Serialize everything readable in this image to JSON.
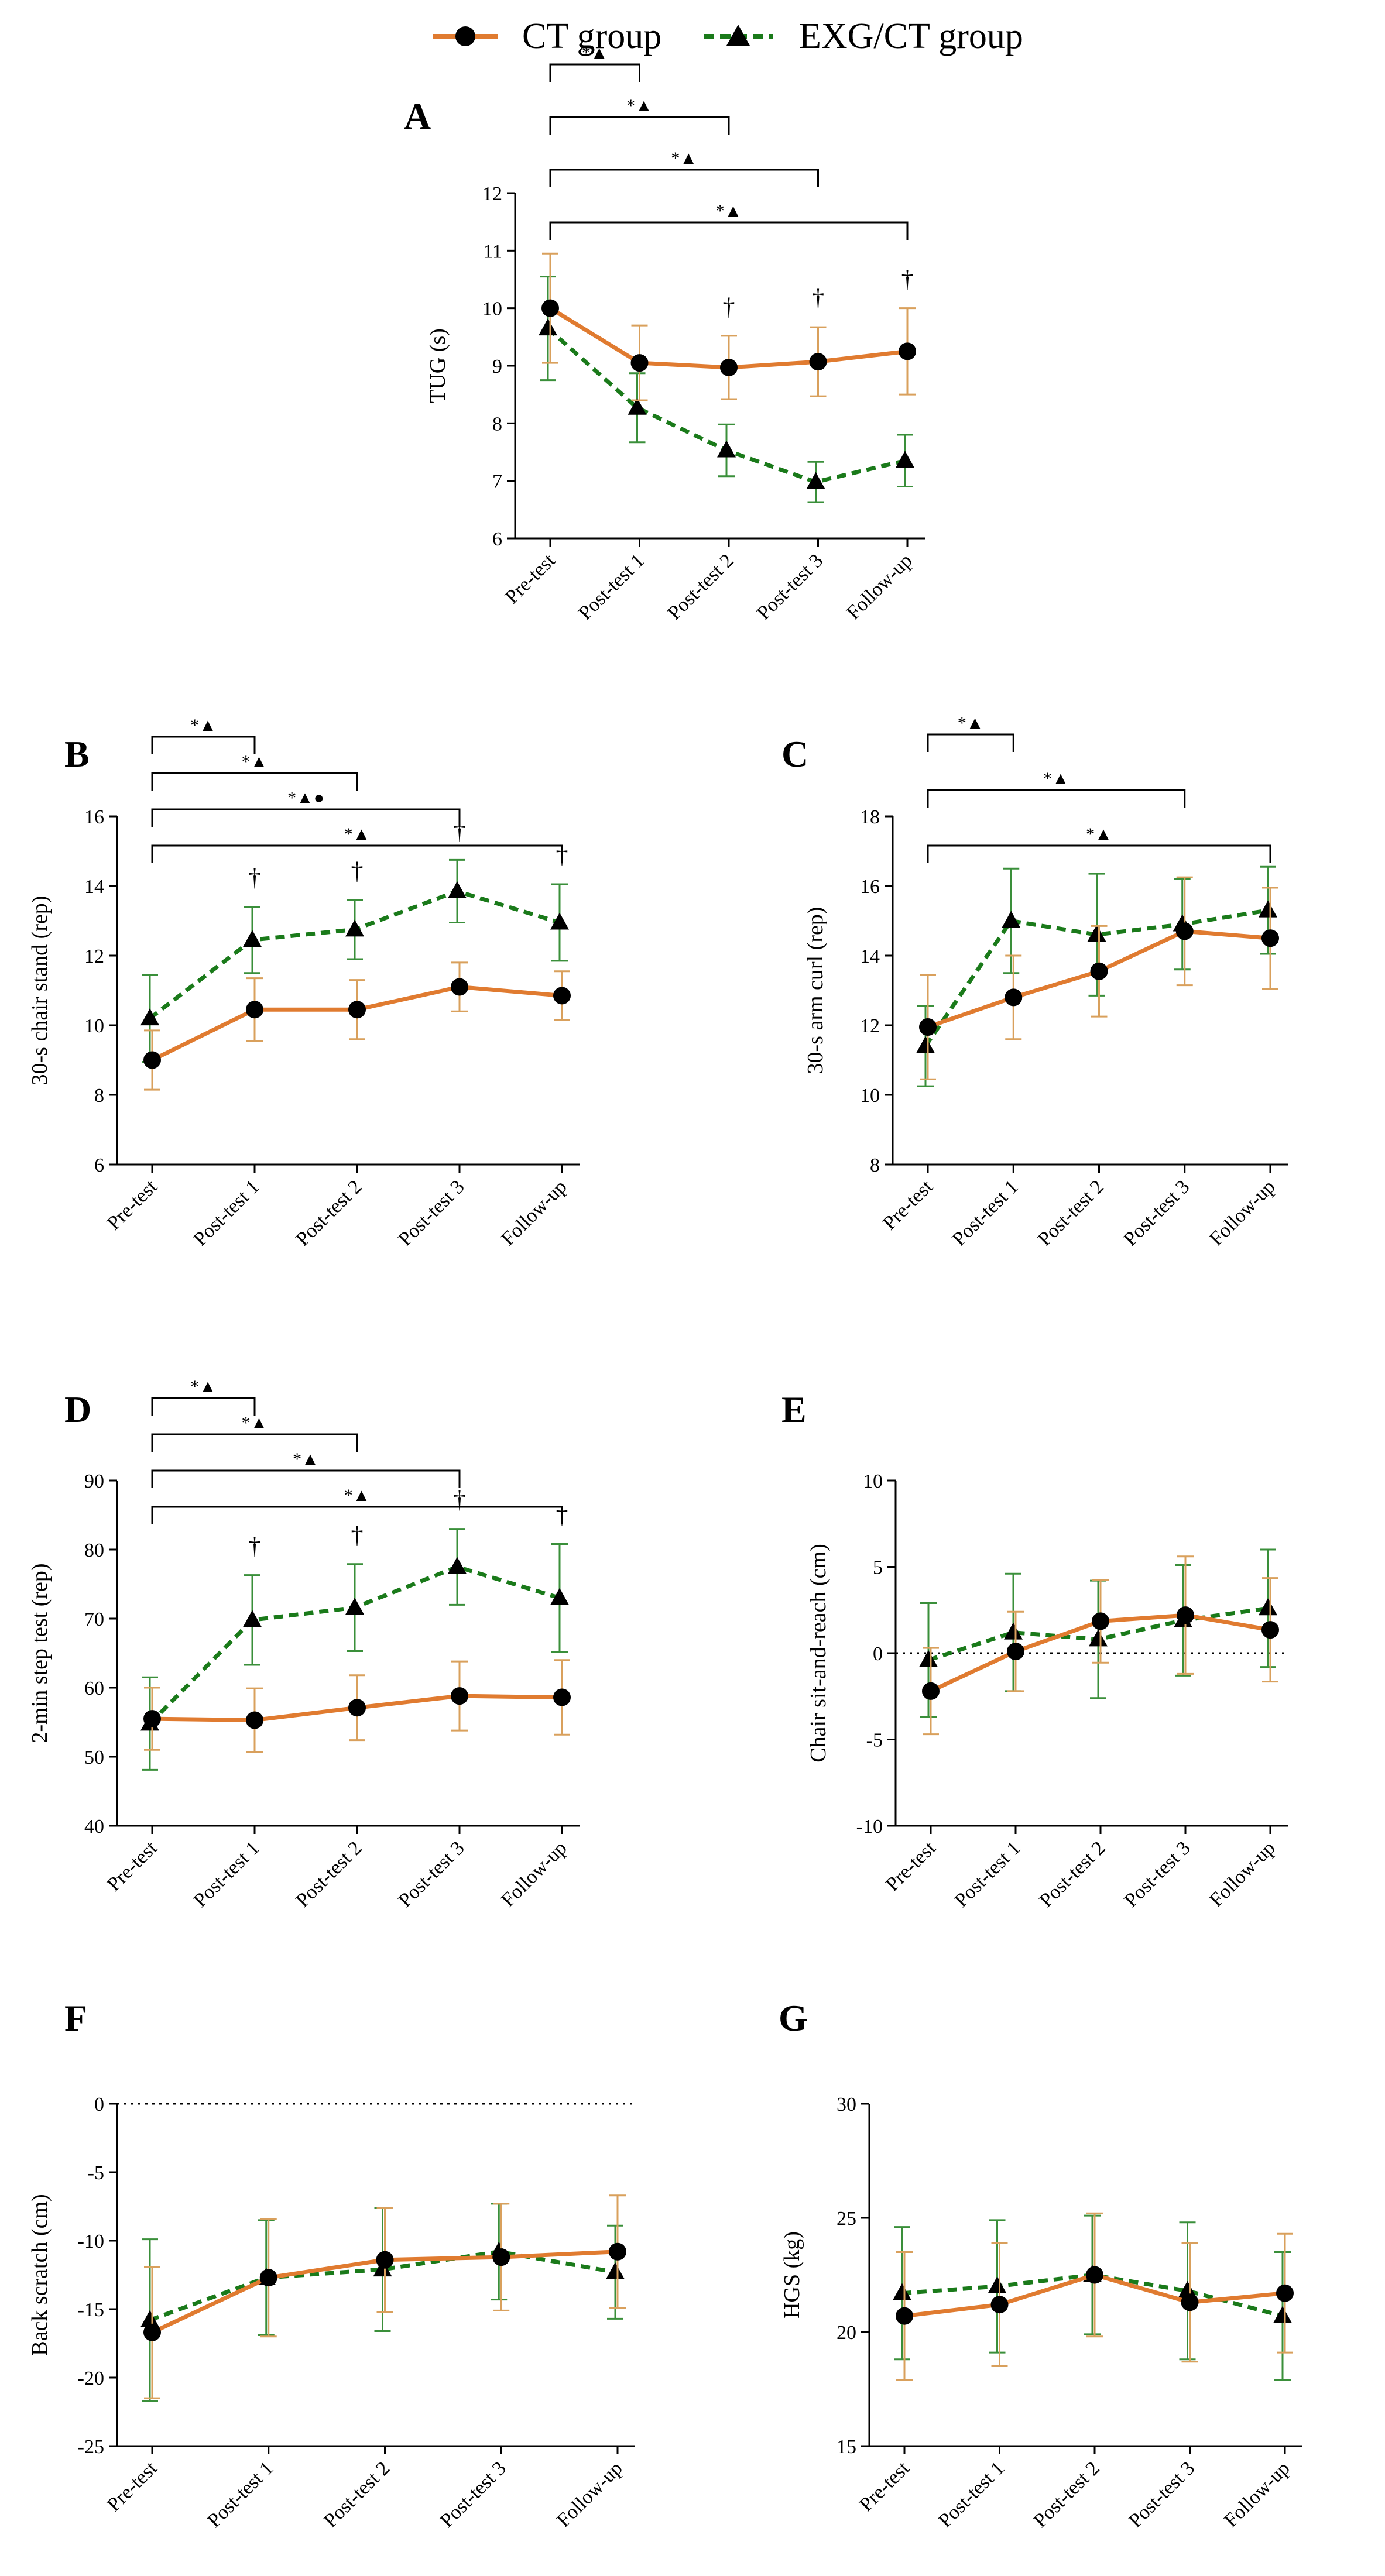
{
  "legend": {
    "ct_label": "CT group",
    "exg_label": "EXG/CT group"
  },
  "colors": {
    "ct": "#E07B30",
    "ct_err": "#D9A05C",
    "exg": "#1A7A1A",
    "exg_err": "#3A8F3A",
    "axis": "#000000"
  },
  "chart_data": [
    {
      "id": "A",
      "type": "line",
      "panel_letter": "A",
      "ylabel": "TUG (s)",
      "categories": [
        "Pre-test",
        "Post-test 1",
        "Post-test 2",
        "Post-test 3",
        "Follow-up"
      ],
      "ylim": [
        6,
        12
      ],
      "yticks": [
        6,
        7,
        8,
        9,
        10,
        11,
        12
      ],
      "series": [
        {
          "name": "CT group",
          "values": [
            10.0,
            9.05,
            8.97,
            9.07,
            9.25
          ],
          "err": [
            0.95,
            0.65,
            0.55,
            0.6,
            0.75
          ]
        },
        {
          "name": "EXG/CT group",
          "values": [
            9.65,
            8.27,
            7.53,
            6.98,
            7.35
          ],
          "err": [
            0.9,
            0.6,
            0.45,
            0.35,
            0.45
          ]
        }
      ],
      "brackets": [
        {
          "to": 1,
          "label": "*▲"
        },
        {
          "to": 2,
          "label": "*▲"
        },
        {
          "to": 3,
          "label": "*▲"
        },
        {
          "to": 4,
          "label": "*▲"
        }
      ],
      "daggers": [
        2,
        3,
        4
      ],
      "dagger_symbol": "†"
    },
    {
      "id": "B",
      "type": "line",
      "panel_letter": "B",
      "ylabel": "30-s chair stand (rep)",
      "categories": [
        "Pre-test",
        "Post-test 1",
        "Post-test 2",
        "Post-test 3",
        "Follow-up"
      ],
      "ylim": [
        6,
        16
      ],
      "yticks": [
        6,
        8,
        10,
        12,
        14,
        16
      ],
      "series": [
        {
          "name": "CT group",
          "values": [
            9.0,
            10.45,
            10.45,
            11.1,
            10.85
          ],
          "err": [
            0.85,
            0.9,
            0.85,
            0.7,
            0.7
          ]
        },
        {
          "name": "EXG/CT group",
          "values": [
            10.2,
            12.45,
            12.75,
            13.85,
            12.95
          ],
          "err": [
            1.25,
            0.95,
            0.85,
            0.9,
            1.1
          ]
        }
      ],
      "brackets": [
        {
          "to": 1,
          "label": "*▲"
        },
        {
          "to": 2,
          "label": "*▲"
        },
        {
          "to": 3,
          "label": "*▲●"
        },
        {
          "to": 4,
          "label": "*▲"
        }
      ],
      "daggers": [
        1,
        2,
        3,
        4
      ],
      "dagger_symbol": "†"
    },
    {
      "id": "C",
      "type": "line",
      "panel_letter": "C",
      "ylabel": "30-s arm curl (rep)",
      "categories": [
        "Pre-test",
        "Post-test 1",
        "Post-test 2",
        "Post-test 3",
        "Follow-up"
      ],
      "ylim": [
        8,
        18
      ],
      "yticks": [
        8,
        10,
        12,
        14,
        16,
        18
      ],
      "series": [
        {
          "name": "CT group",
          "values": [
            11.95,
            12.8,
            13.55,
            14.7,
            14.5
          ],
          "err": [
            1.5,
            1.2,
            1.3,
            1.55,
            1.45
          ]
        },
        {
          "name": "EXG/CT group",
          "values": [
            11.4,
            15.0,
            14.6,
            14.9,
            15.3
          ],
          "err": [
            1.15,
            1.5,
            1.75,
            1.3,
            1.25
          ]
        }
      ],
      "brackets": [
        {
          "to": 1,
          "label": "*▲"
        },
        {
          "to": 3,
          "label": "*▲"
        },
        {
          "to": 4,
          "label": "*▲"
        }
      ],
      "daggers": [],
      "dagger_symbol": "†"
    },
    {
      "id": "D",
      "type": "line",
      "panel_letter": "D",
      "ylabel": "2-min step test (rep)",
      "categories": [
        "Pre-test",
        "Post-test 1",
        "Post-test 2",
        "Post-test 3",
        "Follow-up"
      ],
      "ylim": [
        40,
        90
      ],
      "yticks": [
        40,
        50,
        60,
        70,
        80,
        90
      ],
      "series": [
        {
          "name": "CT group",
          "values": [
            55.5,
            55.3,
            57.1,
            58.8,
            58.6
          ],
          "err": [
            4.5,
            4.6,
            4.7,
            5.0,
            5.4
          ]
        },
        {
          "name": "EXG/CT group",
          "values": [
            54.8,
            69.8,
            71.6,
            77.5,
            73.0
          ],
          "err": [
            6.7,
            6.5,
            6.3,
            5.5,
            7.8
          ]
        }
      ],
      "brackets": [
        {
          "to": 1,
          "label": "*▲"
        },
        {
          "to": 2,
          "label": "*▲"
        },
        {
          "to": 3,
          "label": "*▲"
        },
        {
          "to": 4,
          "label": "*▲"
        }
      ],
      "daggers": [
        1,
        2,
        3,
        4
      ],
      "dagger_symbol": "†"
    },
    {
      "id": "E",
      "type": "line",
      "panel_letter": "E",
      "ylabel": "Chair sit-and-reach (cm)",
      "categories": [
        "Pre-test",
        "Post-test 1",
        "Post-test 2",
        "Post-test 3",
        "Follow-up"
      ],
      "ylim": [
        -10,
        10
      ],
      "yticks": [
        -10,
        -5,
        0,
        5,
        10
      ],
      "zero_line": true,
      "series": [
        {
          "name": "CT group",
          "values": [
            -2.2,
            0.1,
            1.85,
            2.2,
            1.35
          ],
          "err": [
            2.5,
            2.3,
            2.4,
            3.4,
            3.0
          ]
        },
        {
          "name": "EXG/CT group",
          "values": [
            -0.4,
            1.2,
            0.8,
            1.9,
            2.6
          ],
          "err": [
            3.3,
            3.4,
            3.4,
            3.2,
            3.4
          ]
        }
      ],
      "brackets": [],
      "daggers": [],
      "dagger_symbol": "†"
    },
    {
      "id": "F",
      "type": "line",
      "panel_letter": "F",
      "ylabel": "Back scratch (cm)",
      "categories": [
        "Pre-test",
        "Post-test 1",
        "Post-test 2",
        "Post-test 3",
        "Follow-up"
      ],
      "ylim": [
        -25,
        0
      ],
      "yticks": [
        -25,
        -20,
        -15,
        -10,
        -5,
        0
      ],
      "zero_line": true,
      "series": [
        {
          "name": "CT group",
          "values": [
            -16.7,
            -12.7,
            -11.4,
            -11.2,
            -10.8
          ],
          "err": [
            4.8,
            4.3,
            3.8,
            3.9,
            4.1
          ]
        },
        {
          "name": "EXG/CT group",
          "values": [
            -15.8,
            -12.7,
            -12.1,
            -10.8,
            -12.3
          ],
          "err": [
            5.9,
            4.2,
            4.5,
            3.5,
            3.4
          ]
        }
      ],
      "brackets": [],
      "daggers": [],
      "dagger_symbol": "†"
    },
    {
      "id": "G",
      "type": "line",
      "panel_letter": "G",
      "ylabel": "HGS (kg)",
      "categories": [
        "Pre-test",
        "Post-test 1",
        "Post-test 2",
        "Post-test 3",
        "Follow-up"
      ],
      "ylim": [
        15,
        30
      ],
      "yticks": [
        15,
        20,
        25,
        30
      ],
      "series": [
        {
          "name": "CT group",
          "values": [
            20.7,
            21.2,
            22.5,
            21.3,
            21.7
          ],
          "err": [
            2.8,
            2.7,
            2.7,
            2.6,
            2.6
          ]
        },
        {
          "name": "EXG/CT group",
          "values": [
            21.7,
            22.0,
            22.5,
            21.8,
            20.7
          ],
          "err": [
            2.9,
            2.9,
            2.6,
            3.0,
            2.8
          ]
        }
      ],
      "brackets": [],
      "daggers": [],
      "dagger_symbol": "†"
    }
  ]
}
